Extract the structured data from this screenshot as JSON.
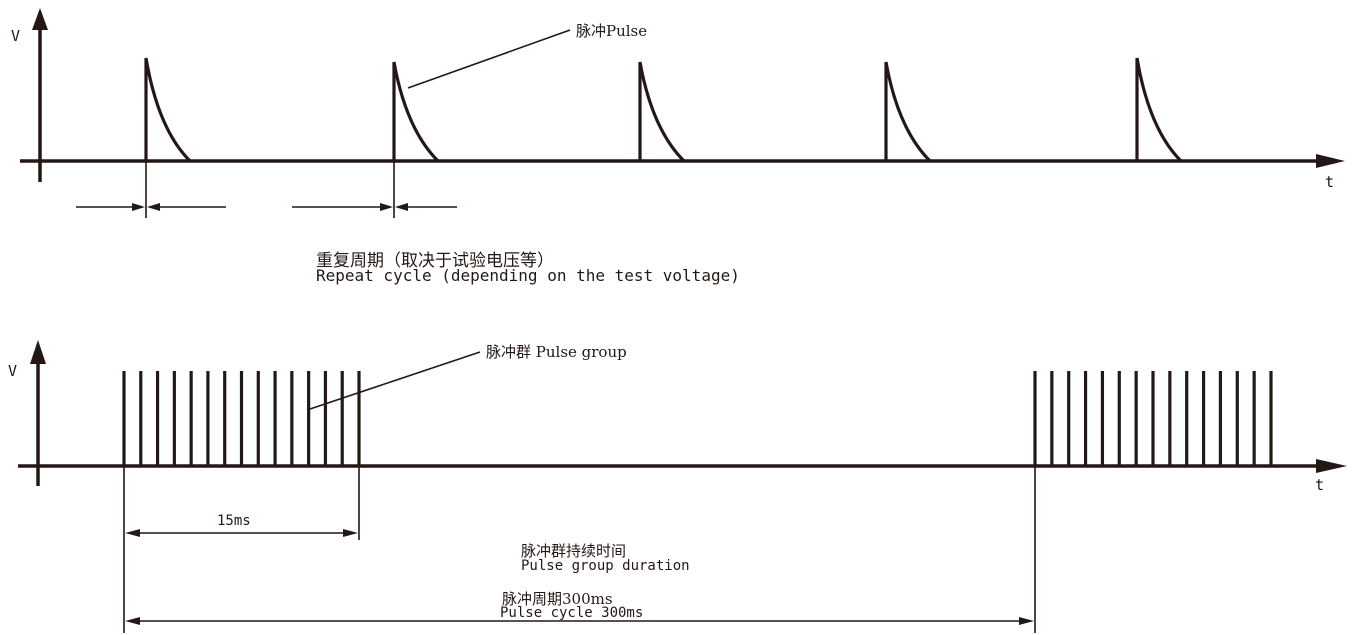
{
  "top_panel": {
    "y_axis_label": "V",
    "x_axis_label": "t",
    "pulse_callout": "脉冲Pulse",
    "repeat_cycle_cn": "重复周期（取决于试验电压等）",
    "repeat_cycle_en": "Repeat cycle (depending on the test voltage)",
    "pulse_count": 5
  },
  "bottom_panel": {
    "y_axis_label": "V",
    "x_axis_label": "t",
    "pulse_group_callout": "脉冲群 Pulse group",
    "bars_per_group": 15,
    "group_count": 2,
    "burst_duration_label": "15ms",
    "group_duration_cn": "脉冲群持续时间",
    "group_duration_en": "Pulse group duration",
    "pulse_cycle_cn": "脉冲周期300ms",
    "pulse_cycle_en": "Pulse cycle 300ms"
  },
  "colors": {
    "ink": "#231815",
    "background": "#ffffff"
  }
}
